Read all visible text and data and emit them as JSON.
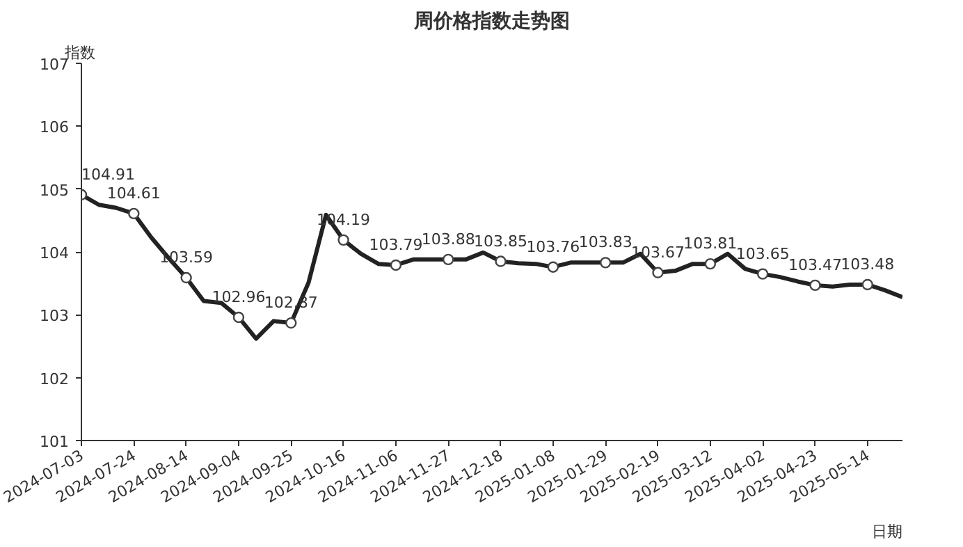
{
  "chart_data": {
    "type": "line",
    "title": "周价格指数走势图",
    "xlabel": "日期",
    "ylabel": "指数",
    "x": [
      "2024-07-03",
      "2024-07-10",
      "2024-07-17",
      "2024-07-24",
      "2024-07-31",
      "2024-08-07",
      "2024-08-14",
      "2024-08-21",
      "2024-08-28",
      "2024-09-04",
      "2024-09-11",
      "2024-09-18",
      "2024-09-25",
      "2024-10-02",
      "2024-10-09",
      "2024-10-16",
      "2024-10-23",
      "2024-10-30",
      "2024-11-06",
      "2024-11-13",
      "2024-11-20",
      "2024-11-27",
      "2024-12-04",
      "2024-12-11",
      "2024-12-18",
      "2024-12-25",
      "2025-01-01",
      "2025-01-08",
      "2025-01-15",
      "2025-01-22",
      "2025-01-29",
      "2025-02-05",
      "2025-02-12",
      "2025-02-19",
      "2025-02-26",
      "2025-03-05",
      "2025-03-12",
      "2025-03-19",
      "2025-03-26",
      "2025-04-02",
      "2025-04-09",
      "2025-04-16",
      "2025-04-23",
      "2025-04-30",
      "2025-05-07",
      "2025-05-14",
      "2025-05-21",
      "2025-05-28"
    ],
    "series": [
      {
        "color": "#222222",
        "values": [
          104.91,
          104.75,
          104.7,
          104.61,
          104.23,
          103.9,
          103.59,
          103.22,
          103.19,
          102.96,
          102.62,
          102.9,
          102.87,
          103.51,
          104.59,
          104.19,
          103.97,
          103.81,
          103.79,
          103.88,
          103.88,
          103.88,
          103.88,
          103.99,
          103.85,
          103.82,
          103.81,
          103.76,
          103.83,
          103.83,
          103.83,
          103.83,
          103.97,
          103.67,
          103.7,
          103.81,
          103.81,
          103.97,
          103.73,
          103.65,
          103.6,
          103.53,
          103.47,
          103.45,
          103.48,
          103.48,
          103.39,
          103.28
        ],
        "value_labels": [
          "104.91",
          null,
          null,
          "104.61",
          null,
          null,
          "103.59",
          null,
          null,
          "102.96",
          null,
          null,
          "102.87",
          null,
          null,
          "104.19",
          null,
          null,
          "103.79",
          null,
          null,
          "103.88",
          null,
          null,
          "103.85",
          null,
          null,
          "103.76",
          null,
          null,
          "103.83",
          null,
          null,
          "103.67",
          null,
          null,
          "103.81",
          null,
          null,
          "103.65",
          null,
          null,
          "103.47",
          null,
          null,
          "103.48",
          null,
          null
        ]
      },
      {
        "type": "scatter",
        "marker": "circle",
        "color": "#444444",
        "x": [
          "2024-07-03",
          "2024-07-24",
          "2024-08-14",
          "2024-09-04",
          "2024-09-25",
          "2024-10-16",
          "2024-11-06",
          "2024-11-27",
          "2024-12-18",
          "2025-01-08",
          "2025-01-29",
          "2025-02-19",
          "2025-03-12",
          "2025-04-02",
          "2025-04-23",
          "2025-05-14"
        ],
        "values": [
          104.91,
          104.61,
          103.59,
          102.96,
          102.87,
          104.19,
          103.79,
          103.88,
          103.85,
          103.76,
          103.83,
          103.67,
          103.81,
          103.65,
          103.47,
          103.48
        ]
      }
    ],
    "xlim": [
      "2024-07-03",
      "2025-05-28"
    ],
    "xticks": [
      "2024-07-03",
      "2024-07-24",
      "2024-08-14",
      "2024-09-04",
      "2024-09-25",
      "2024-10-16",
      "2024-11-06",
      "2024-11-27",
      "2024-12-18",
      "2025-01-08",
      "2025-01-29",
      "2025-02-19",
      "2025-03-12",
      "2025-04-02",
      "2025-04-23",
      "2025-05-14"
    ],
    "ylim": [
      101,
      107
    ],
    "yticks": [
      101,
      102,
      103,
      104,
      105,
      106,
      107
    ],
    "grid": false,
    "line_style": "solid"
  }
}
